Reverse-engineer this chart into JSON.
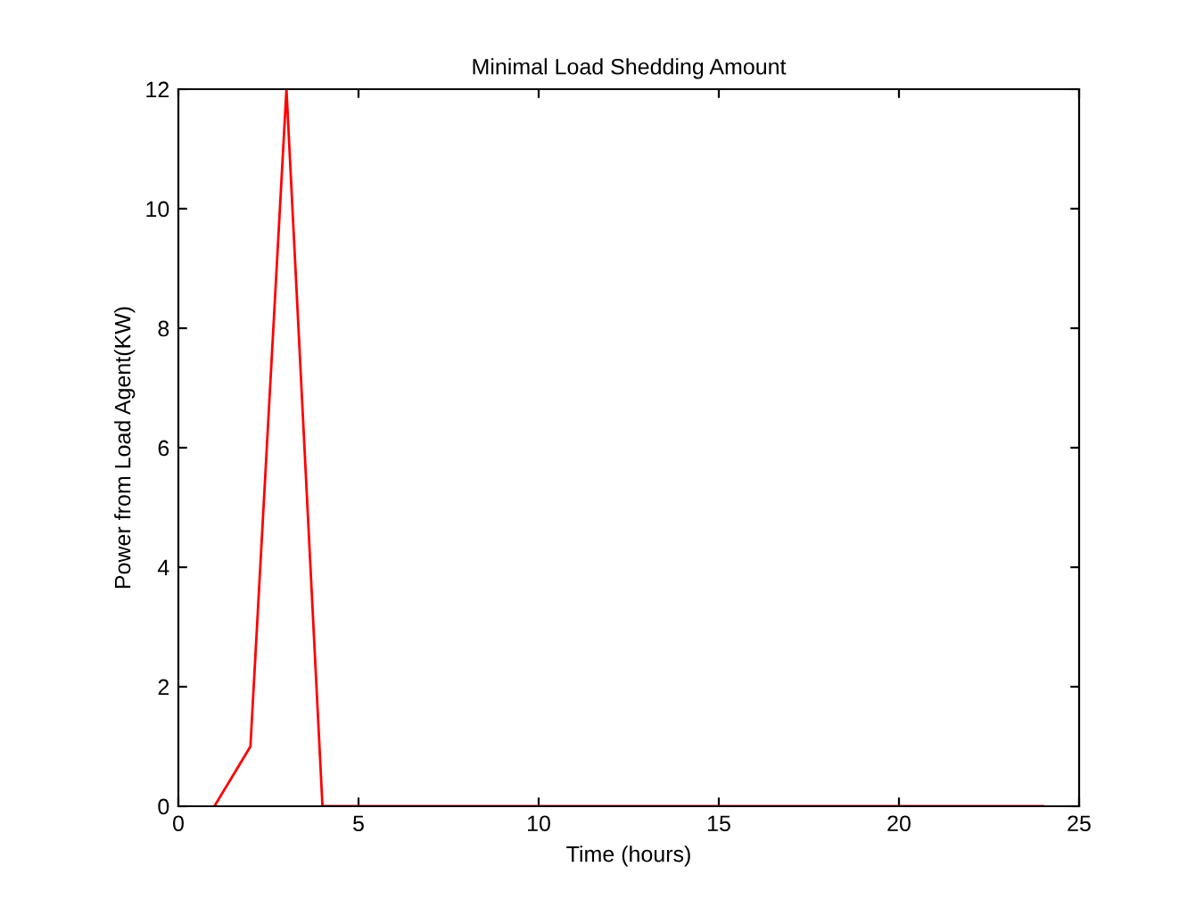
{
  "chart_data": {
    "type": "line",
    "title": "Minimal Load Shedding Amount",
    "xlabel": "Time (hours)",
    "ylabel": "Power from Load Agent(KW)",
    "x": [
      1,
      2,
      3,
      4,
      5,
      6,
      7,
      8,
      9,
      10,
      11,
      12,
      13,
      14,
      15,
      16,
      17,
      18,
      19,
      20,
      21,
      22,
      23,
      24
    ],
    "series": [
      {
        "color": "#ff0000",
        "values": [
          0,
          1,
          12,
          0,
          0,
          0,
          0,
          0,
          0,
          0,
          0,
          0,
          0,
          0,
          0,
          0,
          0,
          0,
          0,
          0,
          0,
          0,
          0,
          0
        ]
      }
    ],
    "xlim": [
      0,
      25
    ],
    "ylim": [
      0,
      12
    ],
    "xticks": [
      0,
      5,
      10,
      15,
      20,
      25
    ],
    "yticks": [
      0,
      2,
      4,
      6,
      8,
      10,
      12
    ],
    "grid": false,
    "legend": false,
    "marker": "none",
    "line_style": "solid"
  }
}
